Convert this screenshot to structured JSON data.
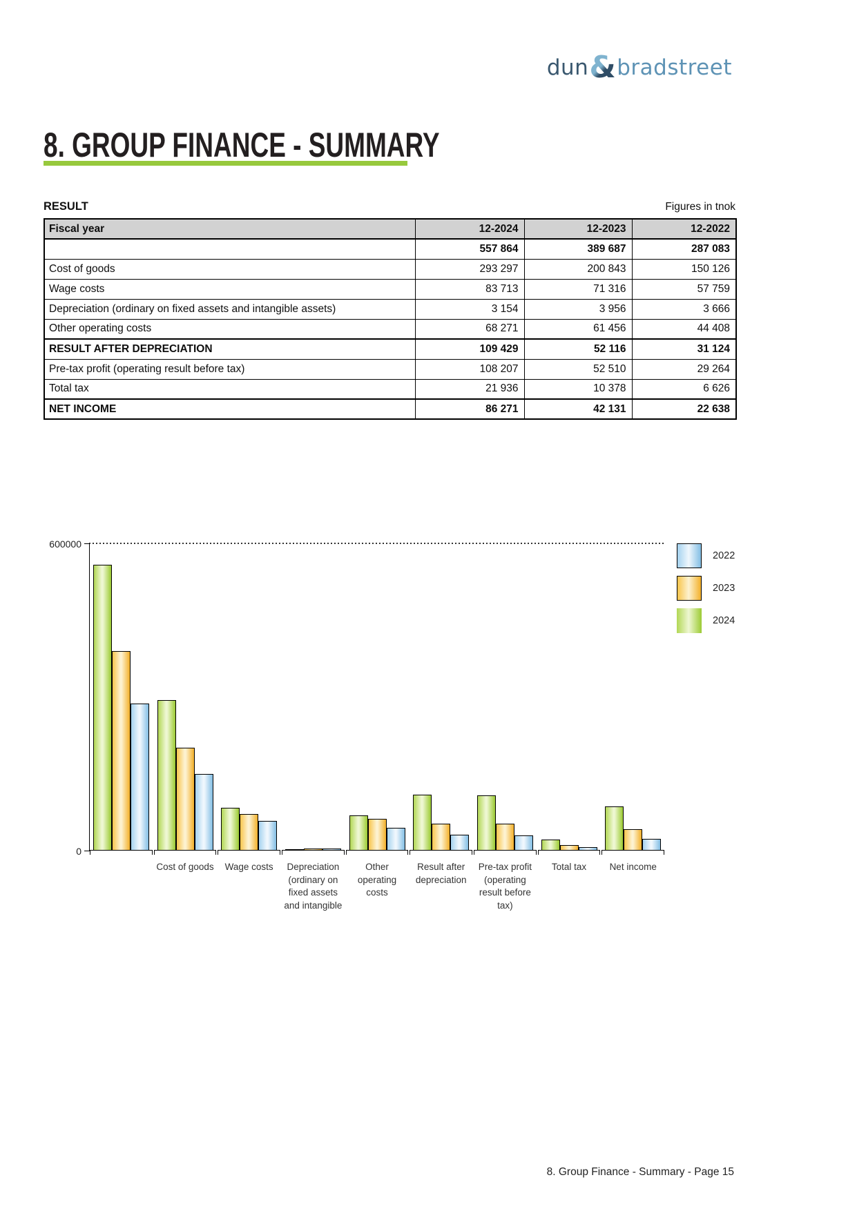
{
  "logo": {
    "part1": "dun",
    "amp": "&",
    "part2": "bradstreet"
  },
  "page": {
    "title": "8. GROUP FINANCE - SUMMARY",
    "footer": "8. Group Finance - Summary - Page 15"
  },
  "colors": {
    "accent_green": "#97c93d",
    "logo_dark_blue": "#3a586f",
    "logo_light_blue": "#5e93b5",
    "table_header_gray": "#d2d2d2",
    "bar_green": "#9ccb33",
    "bar_orange": "#f3b02a",
    "bar_blue": "#83bee4"
  },
  "result_section": {
    "heading": "RESULT",
    "units_note": "Figures in tnok"
  },
  "table": {
    "header": [
      "Fiscal year",
      "12-2024",
      "12-2023",
      "12-2022"
    ],
    "rows": [
      {
        "label": "",
        "values": [
          "557 864",
          "389 687",
          "287 083"
        ],
        "bold": true
      },
      {
        "label": "Cost of goods",
        "values": [
          "293 297",
          "200 843",
          "150 126"
        ],
        "bold": false
      },
      {
        "label": "Wage costs",
        "values": [
          "83 713",
          "71 316",
          "57 759"
        ],
        "bold": false
      },
      {
        "label": "Depreciation (ordinary on fixed assets and intangible assets)",
        "values": [
          "3 154",
          "3 956",
          "3 666"
        ],
        "bold": false
      },
      {
        "label": "Other operating costs",
        "values": [
          "68 271",
          "61 456",
          "44 408"
        ],
        "bold": false
      },
      {
        "label": "RESULT AFTER DEPRECIATION",
        "values": [
          "109 429",
          "52 116",
          "31 124"
        ],
        "bold": true
      },
      {
        "label": "Pre-tax profit (operating result before tax)",
        "values": [
          "108 207",
          "52 510",
          "29 264"
        ],
        "bold": false
      },
      {
        "label": "Total tax",
        "values": [
          "21 936",
          "10 378",
          "6 626"
        ],
        "bold": false
      },
      {
        "label": "NET INCOME",
        "values": [
          "86 271",
          "42 131",
          "22 638"
        ],
        "bold": true
      }
    ]
  },
  "chart_data": {
    "type": "bar",
    "title": "",
    "categories": [
      "",
      "Cost of goods",
      "Wage costs",
      "Depreciation (ordinary on fixed assets and intangible",
      "Other operating costs",
      "Result after depreciation",
      "Pre-tax profit (operating result before tax)",
      "Total tax",
      "Net income"
    ],
    "tick_lines": [
      [
        ""
      ],
      [
        "Cost of goods"
      ],
      [
        "Wage costs"
      ],
      [
        "Depreciation",
        "(ordinary on",
        "fixed assets",
        "and intangible"
      ],
      [
        "Other",
        "operating",
        "costs"
      ],
      [
        "Result after",
        "depreciation"
      ],
      [
        "Pre-tax profit",
        "(operating",
        "result before",
        "tax)"
      ],
      [
        "Total tax"
      ],
      [
        "Net income"
      ]
    ],
    "series": [
      {
        "name": "2024",
        "values": [
          557864,
          293297,
          83713,
          3154,
          68271,
          109429,
          108207,
          21936,
          86271
        ],
        "gradient": [
          "#b2d755",
          "#eef7d2",
          "#9ccb33"
        ]
      },
      {
        "name": "2023",
        "values": [
          389687,
          200843,
          71316,
          3956,
          61456,
          52116,
          52510,
          10378,
          42131
        ],
        "gradient": [
          "#f8c54c",
          "#fdf2d0",
          "#f3b02a"
        ]
      },
      {
        "name": "2022",
        "values": [
          287083,
          150126,
          57759,
          3666,
          44408,
          31124,
          29264,
          6626,
          22638
        ],
        "gradient": [
          "#a5d2ef",
          "#eff7fd",
          "#83bee4"
        ]
      }
    ],
    "legend": [
      "2022",
      "2023",
      "2024"
    ],
    "legend_position": "top-right",
    "xlabel": "",
    "ylabel": "",
    "ylim": [
      0,
      600000
    ],
    "yticks": {
      "top": "600000",
      "bottom": "0"
    },
    "grid": "single dotted gridline at 600000"
  }
}
